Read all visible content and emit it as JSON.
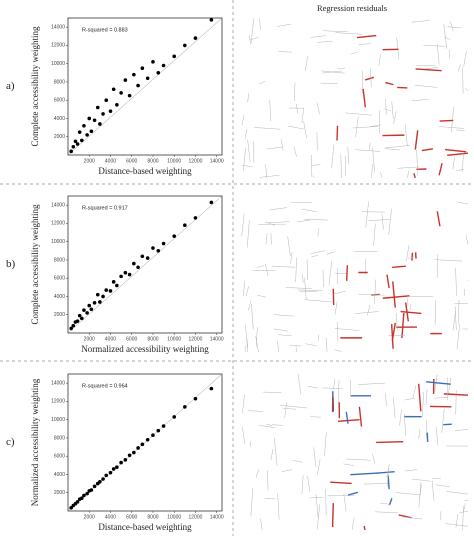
{
  "residuals_title": "Regression residuals",
  "chart_data": [
    {
      "type": "scatter",
      "panel_label": "a)",
      "annotation": "R-squared = 0.883",
      "x_label": "Distance-based weighting",
      "y_label": "Complete accessibility weighting",
      "x": [
        300,
        500,
        700,
        900,
        1100,
        1300,
        1500,
        1800,
        2000,
        2200,
        2500,
        2800,
        3000,
        3300,
        3600,
        4000,
        4300,
        4600,
        5000,
        5400,
        5800,
        6200,
        6600,
        7000,
        7500,
        8000,
        8500,
        9000,
        10000,
        11000,
        12000,
        13500
      ],
      "y": [
        400,
        900,
        1500,
        1200,
        2500,
        1600,
        3200,
        2200,
        4000,
        2600,
        3800,
        5200,
        3400,
        4500,
        6000,
        4800,
        7200,
        5500,
        6800,
        8200,
        6500,
        8800,
        7600,
        9500,
        8400,
        10200,
        9000,
        9800,
        10800,
        12000,
        12800,
        14800
      ],
      "xlim": [
        0,
        14500
      ],
      "ylim": [
        0,
        15000
      ],
      "xticks": [
        2000,
        4000,
        6000,
        8000,
        10000,
        12000,
        14000
      ],
      "yticks": [
        2000,
        4000,
        6000,
        8000,
        10000,
        12000,
        14000
      ],
      "color": "#000000"
    },
    {
      "type": "scatter",
      "panel_label": "b)",
      "annotation": "R-squared = 0.917",
      "x_label": "Normalized accessibility weighting",
      "y_label": "Complete accessibility weighting",
      "x": [
        300,
        500,
        700,
        900,
        1100,
        1300,
        1500,
        1800,
        2000,
        2200,
        2500,
        2800,
        3000,
        3300,
        3600,
        4000,
        4300,
        4600,
        5000,
        5400,
        5800,
        6200,
        6600,
        7000,
        7500,
        8000,
        8500,
        9000,
        10000,
        11000,
        12000,
        13500
      ],
      "y": [
        500,
        800,
        1200,
        1300,
        1900,
        1600,
        2500,
        2200,
        3000,
        2600,
        3300,
        4200,
        3400,
        4000,
        4700,
        4600,
        5600,
        5200,
        6200,
        6600,
        6400,
        7600,
        7200,
        8400,
        8200,
        9300,
        9000,
        9800,
        10600,
        11800,
        12600,
        14300
      ],
      "xlim": [
        0,
        14500
      ],
      "ylim": [
        0,
        15000
      ],
      "xticks": [
        2000,
        4000,
        6000,
        8000,
        10000,
        12000,
        14000
      ],
      "yticks": [
        2000,
        4000,
        6000,
        8000,
        10000,
        12000,
        14000
      ],
      "color": "#000000"
    },
    {
      "type": "scatter",
      "panel_label": "c)",
      "annotation": "R-squared = 0.964",
      "x_label": "Distance-based weighting",
      "y_label": "Normalized accessibility weighting",
      "x": [
        300,
        500,
        700,
        900,
        1100,
        1300,
        1500,
        1800,
        2000,
        2200,
        2500,
        2800,
        3000,
        3300,
        3600,
        4000,
        4300,
        4600,
        5000,
        5400,
        5800,
        6200,
        6600,
        7000,
        7500,
        8000,
        8500,
        9000,
        10000,
        11000,
        12000,
        13500
      ],
      "y": [
        350,
        600,
        800,
        1000,
        1300,
        1400,
        1700,
        1900,
        2200,
        2300,
        2700,
        3000,
        3200,
        3500,
        3900,
        4200,
        4600,
        4800,
        5300,
        5600,
        6100,
        6400,
        6900,
        7300,
        7800,
        8300,
        8800,
        9300,
        10300,
        11400,
        12300,
        13400
      ],
      "xlim": [
        0,
        14500
      ],
      "ylim": [
        0,
        15000
      ],
      "xticks": [
        2000,
        4000,
        6000,
        8000,
        10000,
        12000,
        14000
      ],
      "yticks": [
        2000,
        4000,
        6000,
        8000,
        10000,
        12000,
        14000
      ],
      "color": "#000000"
    }
  ]
}
